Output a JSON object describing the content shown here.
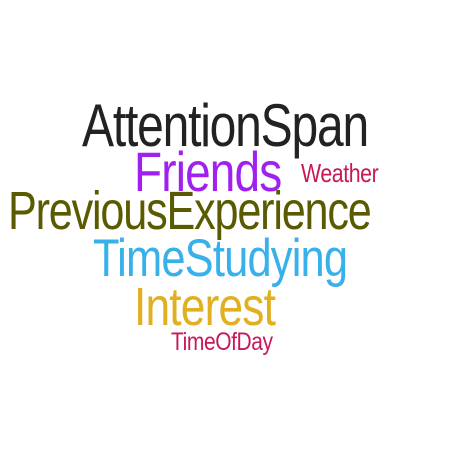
{
  "words": [
    {
      "id": "attention",
      "text": "AttentionSpan",
      "color": "#222222"
    },
    {
      "id": "friends",
      "text": "Friends",
      "color": "#a020f0"
    },
    {
      "id": "weather",
      "text": "Weather",
      "color": "#c8185a"
    },
    {
      "id": "previous",
      "text": "PreviousExperience",
      "color": "#5a5a00"
    },
    {
      "id": "timestudy",
      "text": "TimeStudying",
      "color": "#38b0ea"
    },
    {
      "id": "interest",
      "text": "Interest",
      "color": "#e0b020"
    },
    {
      "id": "timeofday",
      "text": "TimeOfDay",
      "color": "#c8185a"
    }
  ]
}
